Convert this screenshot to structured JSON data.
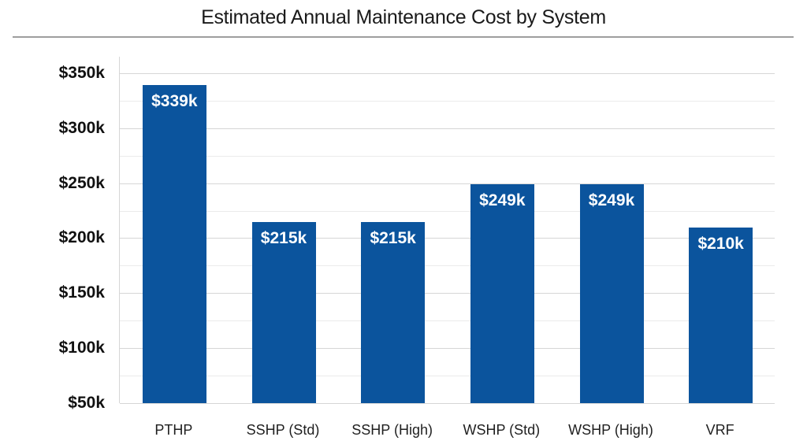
{
  "page": {
    "title": "Estimated Annual Maintenance Cost by System"
  },
  "colors": {
    "background": "#FFFFFF",
    "bar": "#0B549D",
    "bar_label_text": "#FFFFFF",
    "grid_major": "#D6D6D6",
    "grid_minor": "#EBEBEB",
    "axis_line": "#D6D6D6",
    "separator": "#9E9E9E",
    "title_text": "#1A1A1A",
    "tick_text": "#111111",
    "category_text": "#1F1F1F"
  },
  "chart_data": {
    "type": "bar",
    "title": "Estimated Annual Maintenance Cost by System",
    "xlabel": "",
    "ylabel": "",
    "categories": [
      "PTHP",
      "SSHP (Std)",
      "SSHP (High)",
      "WSHP (Std)",
      "WSHP (High)",
      "VRF"
    ],
    "values": [
      339,
      215,
      215,
      249,
      249,
      210
    ],
    "value_unit": "thousand USD per year",
    "data_labels": [
      "$339k",
      "$215k",
      "$215k",
      "$249k",
      "$249k",
      "$210k"
    ],
    "ylim": [
      50,
      365
    ],
    "y_major_ticks": [
      {
        "value": 350,
        "label": "$350k"
      },
      {
        "value": 300,
        "label": "$300k"
      },
      {
        "value": 250,
        "label": "$250k"
      },
      {
        "value": 200,
        "label": "$200k"
      },
      {
        "value": 150,
        "label": "$150k"
      },
      {
        "value": 100,
        "label": "$100k"
      },
      {
        "value": 50,
        "label": "$50k"
      }
    ],
    "y_minor_tick_values": [
      325,
      275,
      225,
      175,
      125,
      75
    ],
    "grid": "horizontal major + minor, no vertical grid",
    "legend": "none",
    "bars_baseline_value": 50,
    "single_series": true,
    "series_color": "#0B549D"
  }
}
